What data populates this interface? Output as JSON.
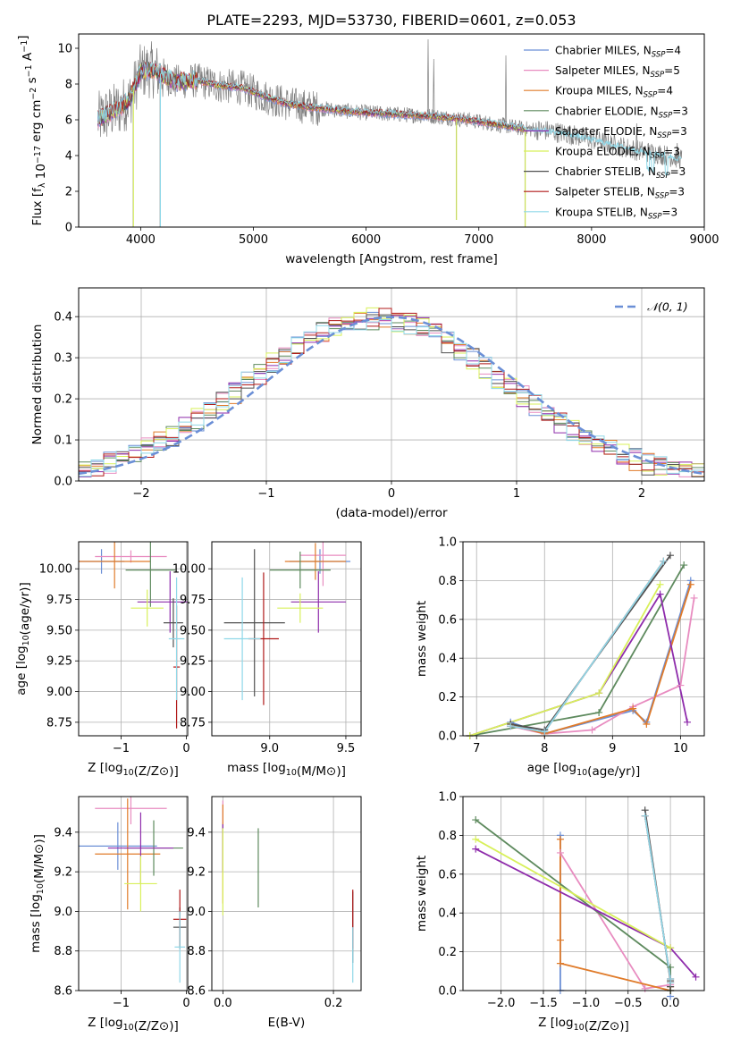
{
  "figure": {
    "title": "PLATE=2293, MJD=53730, FIBERID=0601, z=0.053"
  },
  "colors": {
    "chabrier_miles": "#6b8fd6",
    "salpeter_miles": "#e88cc0",
    "kroupa_miles": "#e07b2a",
    "chabrier_elodie": "#5e8a5e",
    "salpeter_elodie": "#8e2bab",
    "kroupa_elodie": "#d8f05a",
    "chabrier_stelib": "#505050",
    "salpeter_stelib": "#b01818",
    "kroupa_stelib": "#8fd8e8",
    "data": "#808080",
    "normal": "#6b8fd6"
  },
  "chart_data": [
    {
      "id": "spectrum",
      "type": "line",
      "title": "PLATE=2293, MJD=53730, FIBERID=0601, z=0.053",
      "xlabel": "wavelength [Angstrom, rest frame]",
      "ylabel": "Flux [f_λ 10^-17 erg cm^-2 s^-1 A^-1]",
      "xlim": [
        3450,
        9000
      ],
      "ylim": [
        0,
        10.8
      ],
      "xticks": [
        4000,
        5000,
        6000,
        7000,
        8000,
        9000
      ],
      "yticks": [
        0,
        2,
        4,
        6,
        8,
        10
      ],
      "grid": false,
      "legend_position": "top-right",
      "legend": [
        {
          "label": "Chabrier MILES, N",
          "nssp": 4,
          "color_key": "chabrier_miles"
        },
        {
          "label": "Salpeter MILES, N",
          "nssp": 5,
          "color_key": "salpeter_miles"
        },
        {
          "label": "Kroupa MILES, N",
          "nssp": 4,
          "color_key": "kroupa_miles"
        },
        {
          "label": "Chabrier ELODIE, N",
          "nssp": 3,
          "color_key": "chabrier_elodie"
        },
        {
          "label": "Salpeter ELODIE, N",
          "nssp": 3,
          "color_key": "salpeter_elodie"
        },
        {
          "label": "Kroupa ELODIE, N",
          "nssp": 3,
          "color_key": "kroupa_elodie"
        },
        {
          "label": "Chabrier STELIB, N",
          "nssp": 3,
          "color_key": "chabrier_stelib"
        },
        {
          "label": "Salpeter STELIB, N",
          "nssp": 3,
          "color_key": "salpeter_stelib"
        },
        {
          "label": "Kroupa STELIB, N",
          "nssp": 3,
          "color_key": "kroupa_stelib"
        }
      ],
      "continuum": {
        "x": [
          3620,
          3700,
          3800,
          3900,
          4000,
          4100,
          4200,
          4300,
          4500,
          4700,
          4900,
          5100,
          5300,
          5500,
          5800,
          6000,
          6300,
          6600,
          6900,
          7100,
          7400,
          7600,
          7800,
          8000,
          8200,
          8400,
          8600,
          8800
        ],
        "y": [
          6.0,
          6.3,
          6.6,
          7.1,
          8.7,
          8.8,
          8.5,
          8.1,
          8.2,
          7.9,
          7.8,
          7.3,
          6.9,
          6.7,
          6.5,
          6.4,
          6.3,
          6.2,
          6.0,
          5.8,
          5.5,
          5.4,
          5.2,
          4.9,
          4.6,
          4.3,
          4.1,
          3.8
        ]
      },
      "absorption": [
        {
          "x": 3934,
          "y": 0.0
        },
        {
          "x": 4173,
          "y": 0.0
        },
        {
          "x": 6800,
          "y": 0.4
        },
        {
          "x": 7410,
          "y": 0.0
        }
      ]
    },
    {
      "id": "residuals",
      "type": "line",
      "xlabel": "(data-model)/error",
      "ylabel": "Normed distribution",
      "xlim": [
        -2.5,
        2.5
      ],
      "ylim": [
        0,
        0.47
      ],
      "xticks": [
        -2,
        -1,
        0,
        1,
        2
      ],
      "yticks": [
        0.0,
        0.1,
        0.2,
        0.3,
        0.4
      ],
      "grid": true,
      "legend_position": "top-right",
      "legend": [
        {
          "label": "𝒩(0, 1)",
          "color_key": "normal",
          "dash": true
        }
      ]
    },
    {
      "id": "age_vs_Z",
      "type": "scatter",
      "xlabel": "Z [log10(Z/Z⊙)]",
      "ylabel": "age  [log10(age/yr)]",
      "xlim": [
        -1.65,
        0.02
      ],
      "ylim": [
        8.64,
        10.22
      ],
      "xticks": [
        -1,
        0
      ],
      "yticks": [
        8.75,
        9.0,
        9.25,
        9.5,
        9.75,
        10.0
      ],
      "grid": true,
      "points": [
        {
          "x": -1.3,
          "y": 10.06,
          "xerr": 0.35,
          "yerr": 0.1,
          "color_key": "chabrier_miles"
        },
        {
          "x": -0.85,
          "y": 10.1,
          "xerr": 0.55,
          "yerr": 0.05,
          "color_key": "salpeter_miles"
        },
        {
          "x": -1.1,
          "y": 10.06,
          "xerr": 0.55,
          "yerr": 0.22,
          "color_key": "kroupa_miles"
        },
        {
          "x": -0.55,
          "y": 9.99,
          "xerr": 0.38,
          "yerr": 0.3,
          "color_key": "chabrier_elodie"
        },
        {
          "x": -0.25,
          "y": 9.73,
          "xerr": 0.5,
          "yerr": 0.25,
          "color_key": "salpeter_elodie"
        },
        {
          "x": -0.6,
          "y": 9.68,
          "xerr": 0.25,
          "yerr": 0.15,
          "color_key": "kroupa_elodie"
        },
        {
          "x": -0.2,
          "y": 9.56,
          "xerr": 0.15,
          "yerr": 0.2,
          "color_key": "chabrier_stelib"
        },
        {
          "x": -0.15,
          "y": 9.2,
          "xerr": 0.05,
          "yerr": 0.5,
          "color_key": "salpeter_stelib"
        },
        {
          "x": -0.15,
          "y": 9.43,
          "xerr": 0.12,
          "yerr": 0.5,
          "color_key": "kroupa_stelib"
        }
      ]
    },
    {
      "id": "age_vs_mass",
      "type": "scatter",
      "xlabel": "mass [log10(M/M⊙)]",
      "ylabel": "",
      "xlim": [
        8.62,
        9.6
      ],
      "ylim": [
        8.64,
        10.22
      ],
      "xticks": [
        9.0,
        9.5
      ],
      "yticks": [
        8.75,
        9.0,
        9.25,
        9.5,
        9.75,
        10.0
      ],
      "grid": true,
      "points": [
        {
          "x": 9.33,
          "y": 10.06,
          "xerr": 0.2,
          "yerr": 0.1,
          "color_key": "chabrier_miles"
        },
        {
          "x": 9.35,
          "y": 10.11,
          "xerr": 0.15,
          "yerr": 0.25,
          "color_key": "salpeter_miles"
        },
        {
          "x": 9.3,
          "y": 10.06,
          "xerr": 0.2,
          "yerr": 0.15,
          "color_key": "kroupa_miles"
        },
        {
          "x": 9.2,
          "y": 9.99,
          "xerr": 0.2,
          "yerr": 0.15,
          "color_key": "chabrier_elodie"
        },
        {
          "x": 9.32,
          "y": 9.73,
          "xerr": 0.18,
          "yerr": 0.25,
          "color_key": "salpeter_elodie"
        },
        {
          "x": 9.2,
          "y": 9.68,
          "xerr": 0.15,
          "yerr": 0.12,
          "color_key": "kroupa_elodie"
        },
        {
          "x": 8.9,
          "y": 9.56,
          "xerr": 0.2,
          "yerr": 0.6,
          "color_key": "chabrier_stelib"
        },
        {
          "x": 8.96,
          "y": 9.43,
          "xerr": 0.1,
          "yerr": 0.54,
          "color_key": "salpeter_stelib"
        },
        {
          "x": 8.82,
          "y": 9.43,
          "xerr": 0.12,
          "yerr": 0.5,
          "color_key": "kroupa_stelib"
        }
      ]
    },
    {
      "id": "mass_weight_vs_age",
      "type": "line",
      "xlabel": "age  [log10(age/yr)]",
      "ylabel": "mass weight",
      "xlim": [
        6.8,
        10.35
      ],
      "ylim": [
        0,
        1.0
      ],
      "xticks": [
        7,
        8,
        9,
        10
      ],
      "yticks": [
        0.0,
        0.2,
        0.4,
        0.6,
        0.8,
        1.0
      ],
      "grid": true,
      "series": [
        {
          "color_key": "chabrier_miles",
          "x": [
            7.5,
            8.0,
            9.3,
            9.5,
            10.15
          ],
          "y": [
            0.07,
            0.01,
            0.13,
            0.07,
            0.8
          ]
        },
        {
          "color_key": "salpeter_miles",
          "x": [
            7.5,
            8.0,
            8.7,
            9.3,
            10.0,
            10.2
          ],
          "y": [
            0.05,
            0.01,
            0.03,
            0.15,
            0.26,
            0.71
          ]
        },
        {
          "color_key": "kroupa_miles",
          "x": [
            7.5,
            8.0,
            9.3,
            9.5,
            10.15
          ],
          "y": [
            0.06,
            0.01,
            0.14,
            0.06,
            0.78
          ]
        },
        {
          "color_key": "chabrier_elodie",
          "x": [
            6.9,
            8.8,
            10.05
          ],
          "y": [
            0.0,
            0.12,
            0.88
          ]
        },
        {
          "color_key": "salpeter_elodie",
          "x": [
            6.9,
            8.8,
            9.7,
            10.1
          ],
          "y": [
            0.0,
            0.22,
            0.73,
            0.07
          ]
        },
        {
          "color_key": "kroupa_elodie",
          "x": [
            6.9,
            8.8,
            9.7
          ],
          "y": [
            0.0,
            0.22,
            0.78
          ]
        },
        {
          "color_key": "chabrier_stelib",
          "x": [
            7.5,
            8.0,
            9.85
          ],
          "y": [
            0.06,
            0.03,
            0.93
          ]
        },
        {
          "color_key": "salpeter_stelib",
          "x": [
            7.5,
            8.0,
            9.75
          ],
          "y": [
            0.05,
            0.02,
            0.9
          ]
        },
        {
          "color_key": "kroupa_stelib",
          "x": [
            7.5,
            8.0,
            9.75
          ],
          "y": [
            0.05,
            0.02,
            0.9
          ]
        }
      ]
    },
    {
      "id": "mass_vs_Z",
      "type": "scatter",
      "xlabel": "Z [log10(Z/Z⊙)]",
      "ylabel": "mass [log10(M/M⊙)]",
      "xlim": [
        -1.65,
        0.02
      ],
      "ylim": [
        8.6,
        9.58
      ],
      "xticks": [
        -1,
        0
      ],
      "yticks": [
        8.6,
        8.8,
        9.0,
        9.2,
        9.4
      ],
      "grid": true,
      "points": [
        {
          "x": -1.05,
          "y": 9.33,
          "xerr": 0.6,
          "yerr": 0.12,
          "color_key": "chabrier_miles"
        },
        {
          "x": -0.85,
          "y": 9.52,
          "xerr": 0.55,
          "yerr": 0.08,
          "color_key": "salpeter_miles"
        },
        {
          "x": -0.9,
          "y": 9.29,
          "xerr": 0.5,
          "yerr": 0.28,
          "color_key": "kroupa_miles"
        },
        {
          "x": -0.5,
          "y": 9.32,
          "xerr": 0.45,
          "yerr": 0.14,
          "color_key": "chabrier_elodie"
        },
        {
          "x": -0.7,
          "y": 9.32,
          "xerr": 0.5,
          "yerr": 0.18,
          "color_key": "salpeter_elodie"
        },
        {
          "x": -0.7,
          "y": 9.14,
          "xerr": 0.25,
          "yerr": 0.14,
          "color_key": "kroupa_elodie"
        },
        {
          "x": -0.1,
          "y": 8.92,
          "xerr": 0.1,
          "yerr": 0.1,
          "color_key": "chabrier_stelib"
        },
        {
          "x": -0.1,
          "y": 8.96,
          "xerr": 0.1,
          "yerr": 0.15,
          "color_key": "salpeter_stelib"
        },
        {
          "x": -0.1,
          "y": 8.82,
          "xerr": 0.08,
          "yerr": 0.18,
          "color_key": "kroupa_stelib"
        }
      ]
    },
    {
      "id": "mass_vs_ebv",
      "type": "scatter",
      "xlabel": "E(B-V)",
      "ylabel": "",
      "xlim": [
        -0.02,
        0.25
      ],
      "ylim": [
        8.6,
        9.58
      ],
      "xticks": [
        0.0,
        0.2
      ],
      "yticks": [
        8.6,
        8.8,
        9.0,
        9.2,
        9.4
      ],
      "grid": true,
      "points": [
        {
          "x": 0.0,
          "y": 9.33,
          "yerr": 0.12,
          "color_key": "chabrier_miles"
        },
        {
          "x": 0.0,
          "y": 9.5,
          "yerr": 0.06,
          "color_key": "salpeter_miles"
        },
        {
          "x": 0.0,
          "y": 9.29,
          "yerr": 0.25,
          "color_key": "kroupa_miles"
        },
        {
          "x": 0.064,
          "y": 9.22,
          "yerr": 0.2,
          "color_key": "chabrier_elodie"
        },
        {
          "x": 0.0,
          "y": 9.32,
          "yerr": 0.12,
          "color_key": "salpeter_elodie"
        },
        {
          "x": 0.0,
          "y": 9.2,
          "yerr": 0.22,
          "color_key": "kroupa_elodie"
        },
        {
          "x": 0.235,
          "y": 8.92,
          "yerr": 0.18,
          "color_key": "chabrier_stelib"
        },
        {
          "x": 0.235,
          "y": 8.96,
          "yerr": 0.15,
          "color_key": "salpeter_stelib"
        },
        {
          "x": 0.235,
          "y": 8.78,
          "yerr": 0.14,
          "color_key": "kroupa_stelib"
        }
      ]
    },
    {
      "id": "mass_weight_vs_Z",
      "type": "line",
      "xlabel": "Z [log10(Z/Z⊙)]",
      "ylabel": "mass weight",
      "xlim": [
        -2.45,
        0.4
      ],
      "ylim": [
        0,
        1.0
      ],
      "xticks": [
        -2.0,
        -1.5,
        -1.0,
        -0.5,
        0.0
      ],
      "yticks": [
        0.0,
        0.2,
        0.4,
        0.6,
        0.8,
        1.0
      ],
      "grid": true,
      "series": [
        {
          "color_key": "chabrier_miles",
          "x": [
            -1.3,
            -1.3,
            0.0,
            0.0
          ],
          "y": [
            0.8,
            0.0,
            -0.03,
            0.0
          ]
        },
        {
          "color_key": "salpeter_miles",
          "x": [
            -1.3,
            -0.3,
            0.0,
            0.0
          ],
          "y": [
            0.71,
            0.01,
            0.03,
            0.02
          ]
        },
        {
          "color_key": "kroupa_miles",
          "x": [
            -1.3,
            -1.3,
            -1.3,
            0.0,
            0.0
          ],
          "y": [
            0.78,
            0.26,
            0.14,
            0.0,
            0.02
          ]
        },
        {
          "color_key": "chabrier_elodie",
          "x": [
            -2.3,
            0.0,
            0.0
          ],
          "y": [
            0.88,
            0.12,
            0.0
          ]
        },
        {
          "color_key": "salpeter_elodie",
          "x": [
            -2.3,
            0.0,
            0.3
          ],
          "y": [
            0.73,
            0.22,
            0.07
          ]
        },
        {
          "color_key": "kroupa_elodie",
          "x": [
            -2.3,
            0.0
          ],
          "y": [
            0.78,
            0.22
          ]
        },
        {
          "color_key": "chabrier_stelib",
          "x": [
            -0.3,
            0.0,
            0.0
          ],
          "y": [
            0.93,
            0.05,
            0.02
          ]
        },
        {
          "color_key": "salpeter_stelib",
          "x": [
            -0.3,
            0.0,
            0.0
          ],
          "y": [
            0.9,
            0.06,
            0.04
          ]
        },
        {
          "color_key": "kroupa_stelib",
          "x": [
            -0.3,
            0.0,
            0.0
          ],
          "y": [
            0.9,
            0.06,
            0.04
          ]
        }
      ]
    }
  ]
}
